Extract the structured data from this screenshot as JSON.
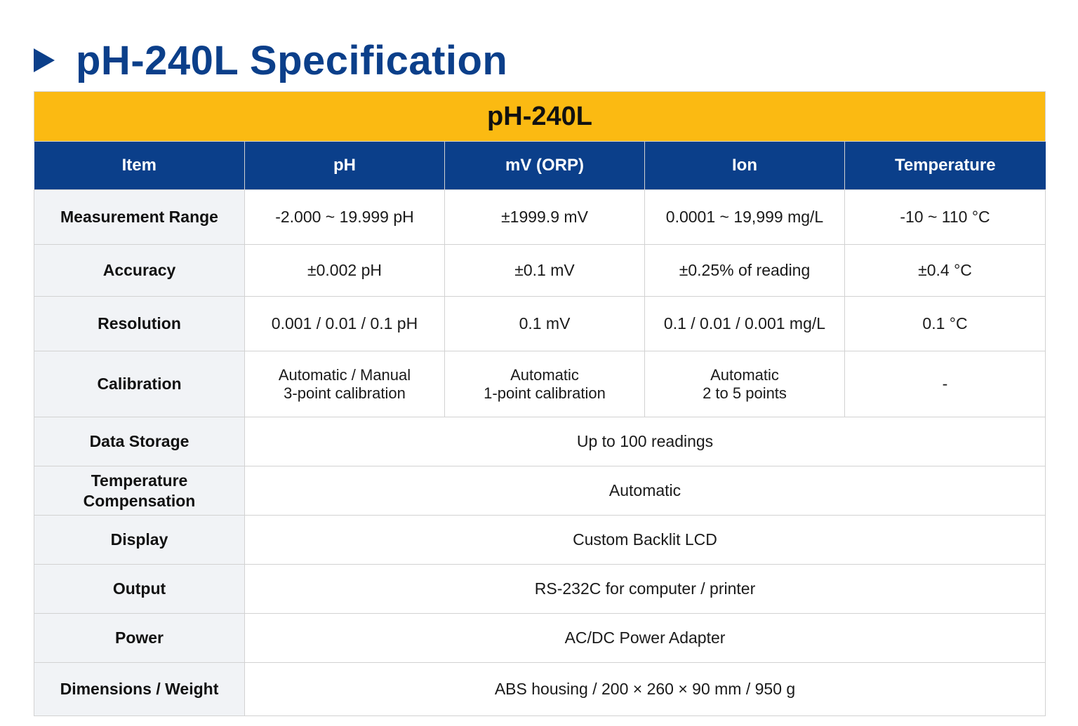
{
  "heading": {
    "title": "pH-240L Specification",
    "icon": "play-triangle-icon",
    "color": "#0b3f8a"
  },
  "table": {
    "model": "pH-240L",
    "model_bar_color": "#fbba12",
    "header_color": "#0b3f8a",
    "columns": [
      "Item",
      "pH",
      "mV (ORP)",
      "Ion",
      "Temperature"
    ],
    "rows": {
      "measurement_range": {
        "label": "Measurement Range",
        "ph": "-2.000 ~ 19.999 pH",
        "mv": "±1999.9 mV",
        "ion": "0.0001 ~ 19,999 mg/L",
        "temp": "-10 ~ 110 °C"
      },
      "accuracy": {
        "label": "Accuracy",
        "ph": "±0.002 pH",
        "mv": "±0.1 mV",
        "ion": "±0.25% of reading",
        "temp": "±0.4 °C"
      },
      "resolution": {
        "label": "Resolution",
        "ph": "0.001 / 0.01 / 0.1 pH",
        "mv": "0.1 mV",
        "ion": "0.1 / 0.01 / 0.001 mg/L",
        "temp": "0.1 °C"
      },
      "calibration": {
        "label": "Calibration",
        "ph": [
          "Automatic / Manual",
          "3-point calibration"
        ],
        "mv": [
          "Automatic",
          "1-point calibration"
        ],
        "ion": [
          "Automatic",
          "2 to 5 points"
        ],
        "temp": "-"
      },
      "data_storage": {
        "label": "Data Storage",
        "value": "Up to 100 readings"
      },
      "temp_compensation": {
        "label": [
          "Temperature",
          "Compensation"
        ],
        "value": "Automatic"
      },
      "display": {
        "label": "Display",
        "value": "Custom Backlit LCD"
      },
      "output": {
        "label": "Output",
        "value": "RS-232C for computer / printer"
      },
      "power": {
        "label": "Power",
        "value": "AC/DC Power Adapter"
      },
      "dimensions": {
        "label": "Dimensions / Weight",
        "value": "ABS housing / 200 × 260 × 90 mm / 950 g"
      }
    }
  }
}
